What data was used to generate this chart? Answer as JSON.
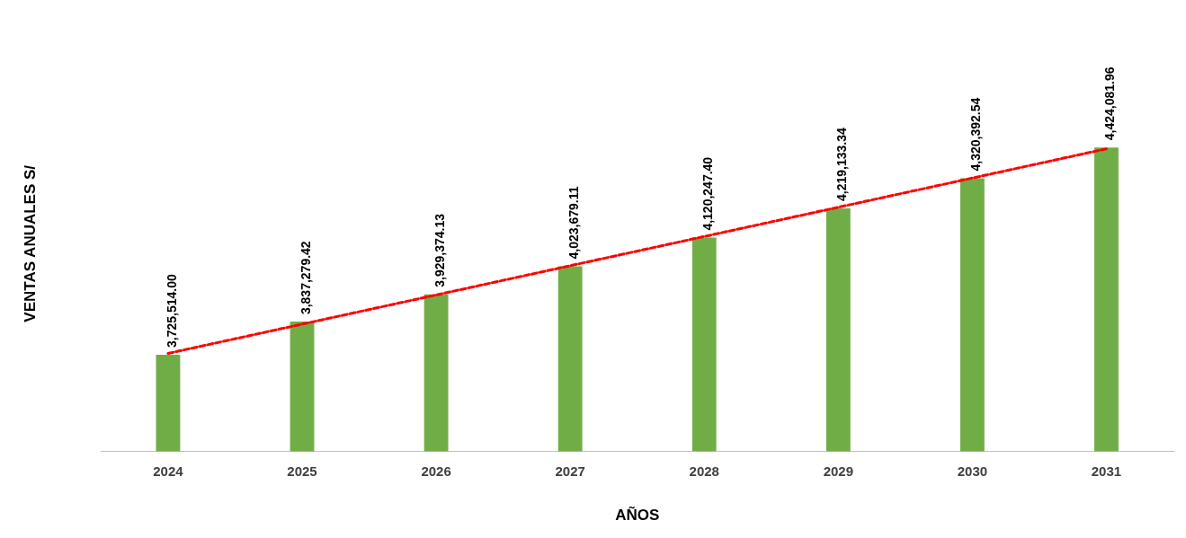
{
  "chart_data": {
    "type": "bar",
    "xlabel": "AÑOS",
    "ylabel": "VENTAS ANUALES S/",
    "categories": [
      "2024",
      "2025",
      "2026",
      "2027",
      "2028",
      "2029",
      "2030",
      "2031"
    ],
    "series": [
      {
        "color": "#70ad47",
        "values": [
          3725514.0,
          3837279.42,
          3929374.13,
          4023679.11,
          4120247.4,
          4219133.34,
          4320392.54,
          4424081.96
        ],
        "value_labels": [
          "3,725,514.00",
          "3,837,279.42",
          "3,929,374.13",
          "4,023,679.11",
          "4,120,247.40",
          "4,219,133.34",
          "4,320,392.54",
          "4,424,081.96"
        ]
      },
      {
        "type": "line",
        "color": "#ff0000",
        "line_style": "dashed",
        "marker": "none",
        "values": [
          3730321,
          3828790,
          3927259,
          4025728,
          4124197,
          4222666,
          4321135,
          4419604
        ]
      }
    ],
    "tick_labels": "x",
    "grid": false,
    "legend": false
  }
}
